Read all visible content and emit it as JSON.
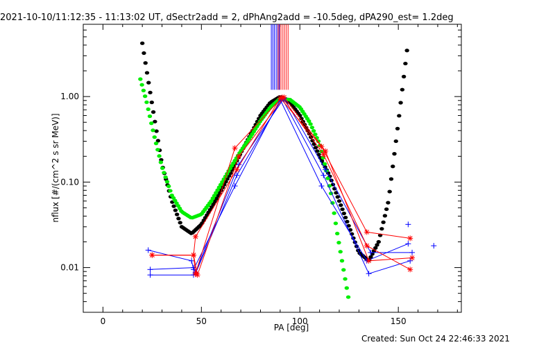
{
  "title": "2021-10-10/11:12:35 - 11:13:02 UT, dSectr2add = 2, dPhAng2add = -10.5deg, dPA290_est=  1.2deg",
  "created": "Created: Sun Oct 24 22:46:33 2021",
  "chart_data": {
    "type": "line",
    "xlabel": "PA [deg]",
    "ylabel": "nflux [#/(cm^2 s sr MeV)]",
    "xlim": [
      -10,
      182
    ],
    "ylim": [
      0.003,
      7.0
    ],
    "yscale": "log",
    "xticks": [
      0,
      50,
      100,
      150
    ],
    "xtick_labels": [
      "0",
      "50",
      "100",
      "150"
    ],
    "yticks": [
      0.01,
      0.1,
      1.0
    ],
    "ytick_labels": [
      "0.01",
      "0.10",
      "1.00"
    ],
    "grid": false,
    "legend": "none",
    "colors": {
      "blue": "#0000ff",
      "red": "#ff0000",
      "black": "#000000",
      "green": "#00ee00"
    },
    "vertical_marks": {
      "y_bottom": 1.2,
      "blue_x": [
        85.5,
        86.3,
        87.1,
        88.0,
        88.8,
        89.6
      ],
      "red_x": [
        89.0,
        90.0,
        91.0,
        92.0,
        93.0,
        94.0
      ]
    },
    "fit_curves": [
      {
        "name": "",
        "color": "black",
        "x_start": 20,
        "x_end": 155,
        "points": [
          [
            20,
            4.2
          ],
          [
            25,
            0.8
          ],
          [
            30,
            0.16
          ],
          [
            35,
            0.06
          ],
          [
            40,
            0.03
          ],
          [
            45,
            0.025
          ],
          [
            50,
            0.032
          ],
          [
            55,
            0.05
          ],
          [
            60,
            0.08
          ],
          [
            65,
            0.13
          ],
          [
            70,
            0.22
          ],
          [
            75,
            0.36
          ],
          [
            80,
            0.6
          ],
          [
            85,
            0.85
          ],
          [
            90,
            1.0
          ],
          [
            95,
            0.85
          ],
          [
            100,
            0.6
          ],
          [
            105,
            0.36
          ],
          [
            110,
            0.2
          ],
          [
            115,
            0.12
          ],
          [
            120,
            0.06
          ],
          [
            125,
            0.03
          ],
          [
            130,
            0.015
          ],
          [
            135,
            0.012
          ],
          [
            140,
            0.02
          ],
          [
            145,
            0.06
          ],
          [
            150,
            0.5
          ],
          [
            155,
            4.5
          ]
        ]
      },
      {
        "name": "",
        "color": "green",
        "x_start": 19,
        "x_end": 125,
        "points": [
          [
            19,
            1.6
          ],
          [
            22,
            0.9
          ],
          [
            26,
            0.35
          ],
          [
            30,
            0.15
          ],
          [
            35,
            0.07
          ],
          [
            40,
            0.045
          ],
          [
            45,
            0.038
          ],
          [
            50,
            0.042
          ],
          [
            55,
            0.06
          ],
          [
            60,
            0.095
          ],
          [
            65,
            0.15
          ],
          [
            70,
            0.23
          ],
          [
            75,
            0.34
          ],
          [
            80,
            0.52
          ],
          [
            85,
            0.75
          ],
          [
            90,
            0.95
          ],
          [
            95,
            0.92
          ],
          [
            100,
            0.75
          ],
          [
            105,
            0.5
          ],
          [
            110,
            0.28
          ],
          [
            113,
            0.15
          ],
          [
            116,
            0.07
          ],
          [
            119,
            0.025
          ],
          [
            122,
            0.01
          ],
          [
            125,
            0.004
          ]
        ]
      }
    ],
    "series": [
      {
        "name": "",
        "color": "blue",
        "points": [
          [
            23,
            0.016
          ],
          [
            45,
            0.012
          ],
          [
            46,
            0.0095
          ],
          [
            67,
            0.09
          ],
          [
            90,
            0.92
          ],
          [
            111,
            0.09
          ],
          [
            134,
            0.012
          ],
          [
            155,
            0.019
          ]
        ]
      },
      {
        "name": "",
        "color": "blue",
        "points": [
          [
            24,
            0.0095
          ],
          [
            46,
            0.01
          ],
          [
            47,
            0.0085
          ],
          [
            68,
            0.12
          ],
          [
            91,
            0.95
          ],
          [
            112,
            0.12
          ],
          [
            135,
            0.0085
          ],
          [
            156,
            0.012
          ]
        ]
      },
      {
        "name": "",
        "color": "blue",
        "points": [
          [
            24,
            0.0082
          ],
          [
            46,
            0.0082
          ],
          [
            47,
            0.0088
          ],
          [
            69,
            0.16
          ],
          [
            92,
            0.96
          ],
          [
            113,
            0.14
          ],
          [
            136,
            0.015
          ],
          [
            157,
            0.015
          ]
        ]
      },
      {
        "name": "",
        "color": "red",
        "points": [
          [
            25,
            0.014
          ],
          [
            46,
            0.014
          ],
          [
            47,
            0.023
          ],
          [
            68,
            0.14
          ],
          [
            90,
            0.96
          ],
          [
            111,
            0.26
          ],
          [
            134,
            0.026
          ],
          [
            156,
            0.022
          ]
        ]
      },
      {
        "name": "",
        "color": "red",
        "points": [
          [
            25,
            0.014
          ],
          [
            46,
            0.014
          ],
          [
            47,
            0.0085
          ],
          [
            67,
            0.25
          ],
          [
            91,
            0.98
          ],
          [
            112,
            0.21
          ],
          [
            134,
            0.018
          ],
          [
            156,
            0.0095
          ]
        ]
      },
      {
        "name": "",
        "color": "red",
        "points": [
          [
            25,
            0.014
          ],
          [
            46,
            0.014
          ],
          [
            48,
            0.0082
          ],
          [
            69,
            0.2
          ],
          [
            92,
            0.98
          ],
          [
            113,
            0.23
          ],
          [
            135,
            0.012
          ],
          [
            157,
            0.013
          ]
        ]
      }
    ],
    "extra_points": [
      {
        "color": "blue",
        "x": 155,
        "y": 0.032,
        "marker": "+"
      },
      {
        "color": "blue",
        "x": 168,
        "y": 0.018,
        "marker": "+"
      }
    ]
  }
}
